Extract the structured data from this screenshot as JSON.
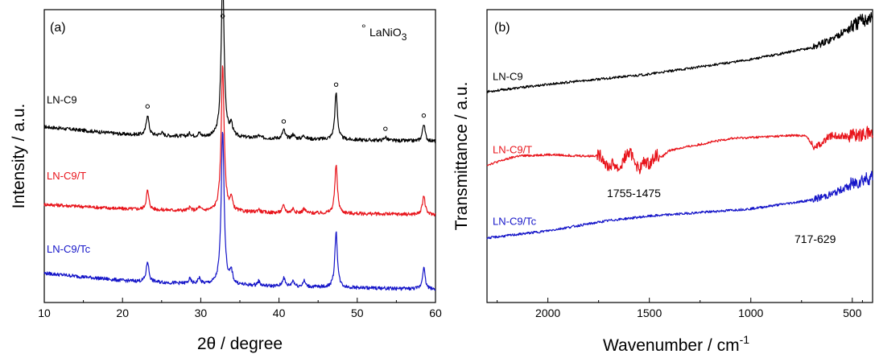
{
  "chart_data": [
    {
      "type": "line",
      "panel": "(a)",
      "xlabel": "2θ / degree",
      "ylabel": "Intensity / a.u.",
      "xlim": [
        10,
        60
      ],
      "xticks": [
        10,
        20,
        30,
        40,
        50,
        60
      ],
      "y_tick_labels": false,
      "legend": {
        "marker": "°",
        "text": "LaNiO",
        "subscript": "3",
        "placement": "top-right"
      },
      "peak_markers": [
        23.2,
        32.8,
        40.6,
        47.3,
        53.6,
        58.5
      ],
      "series": [
        {
          "name": "LN-C9",
          "color": "#000000",
          "baseline": [
            [
              10,
              0.6
            ],
            [
              20,
              0.575
            ],
            [
              30,
              0.565
            ],
            [
              40,
              0.56
            ],
            [
              50,
              0.555
            ],
            [
              60,
              0.55
            ]
          ],
          "peaks": [
            [
              23.2,
              0.07
            ],
            [
              25.0,
              0.01
            ],
            [
              28.6,
              0.01
            ],
            [
              29.8,
              0.012
            ],
            [
              32.8,
              0.56
            ],
            [
              33.9,
              0.04
            ],
            [
              37.4,
              0.008
            ],
            [
              40.6,
              0.03
            ],
            [
              41.8,
              0.015
            ],
            [
              43.2,
              0.012
            ],
            [
              47.3,
              0.16
            ],
            [
              53.6,
              0.012
            ],
            [
              58.5,
              0.06
            ]
          ]
        },
        {
          "name": "LN-C9/T",
          "color": "#e8141b",
          "baseline": [
            [
              10,
              0.335
            ],
            [
              20,
              0.32
            ],
            [
              30,
              0.312
            ],
            [
              40,
              0.306
            ],
            [
              50,
              0.303
            ],
            [
              60,
              0.3
            ]
          ],
          "peaks": [
            [
              23.2,
              0.065
            ],
            [
              28.6,
              0.01
            ],
            [
              29.8,
              0.012
            ],
            [
              32.8,
              0.5
            ],
            [
              33.9,
              0.04
            ],
            [
              37.4,
              0.01
            ],
            [
              40.6,
              0.025
            ],
            [
              41.8,
              0.015
            ],
            [
              43.2,
              0.015
            ],
            [
              47.3,
              0.165
            ],
            [
              58.5,
              0.065
            ]
          ]
        },
        {
          "name": "LN-C9/Tc",
          "color": "#1414c8",
          "baseline": [
            [
              10,
              0.1
            ],
            [
              20,
              0.075
            ],
            [
              30,
              0.062
            ],
            [
              40,
              0.055
            ],
            [
              50,
              0.05
            ],
            [
              60,
              0.045
            ]
          ],
          "peaks": [
            [
              23.2,
              0.07
            ],
            [
              28.6,
              0.015
            ],
            [
              29.8,
              0.02
            ],
            [
              32.8,
              0.53
            ],
            [
              33.9,
              0.04
            ],
            [
              37.4,
              0.015
            ],
            [
              40.6,
              0.03
            ],
            [
              41.8,
              0.02
            ],
            [
              43.2,
              0.02
            ],
            [
              47.3,
              0.19
            ],
            [
              58.5,
              0.075
            ]
          ]
        }
      ]
    },
    {
      "type": "line",
      "panel": "(b)",
      "xlabel": "Wavenumber / cm",
      "xlabel_superscript": "-1",
      "ylabel": "Transmittance / a.u.",
      "xlim": [
        2300,
        400
      ],
      "xticks": [
        2000,
        1500,
        1000,
        500
      ],
      "y_tick_labels": false,
      "annotations": [
        "1755-1475",
        "717-629"
      ],
      "series": [
        {
          "name": "LN-C9",
          "color": "#000000",
          "baseline": [
            [
              2300,
              0.72
            ],
            [
              2000,
              0.745
            ],
            [
              1500,
              0.78
            ],
            [
              1000,
              0.83
            ],
            [
              700,
              0.87
            ],
            [
              600,
              0.9
            ],
            [
              450,
              0.965
            ],
            [
              400,
              0.975
            ]
          ],
          "dips": []
        },
        {
          "name": "LN-C9/T",
          "color": "#e8141b",
          "baseline": [
            [
              2300,
              0.47
            ],
            [
              2150,
              0.5
            ],
            [
              2000,
              0.505
            ],
            [
              1800,
              0.5
            ],
            [
              1400,
              0.52
            ],
            [
              1100,
              0.56
            ],
            [
              800,
              0.57
            ],
            [
              500,
              0.57
            ],
            [
              400,
              0.58
            ]
          ],
          "dips": [
            [
              1700,
              0.04
            ],
            [
              1650,
              0.05
            ],
            [
              1550,
              0.055
            ],
            [
              1500,
              0.04
            ],
            [
              1440,
              0.02
            ],
            [
              690,
              0.035
            ],
            [
              650,
              0.025
            ]
          ]
        },
        {
          "name": "LN-C9/Tc",
          "color": "#1414c8",
          "baseline": [
            [
              2300,
              0.22
            ],
            [
              2000,
              0.245
            ],
            [
              1700,
              0.28
            ],
            [
              1500,
              0.295
            ],
            [
              1000,
              0.32
            ],
            [
              700,
              0.35
            ],
            [
              600,
              0.37
            ],
            [
              450,
              0.42
            ],
            [
              400,
              0.43
            ]
          ],
          "dips": []
        }
      ]
    }
  ]
}
